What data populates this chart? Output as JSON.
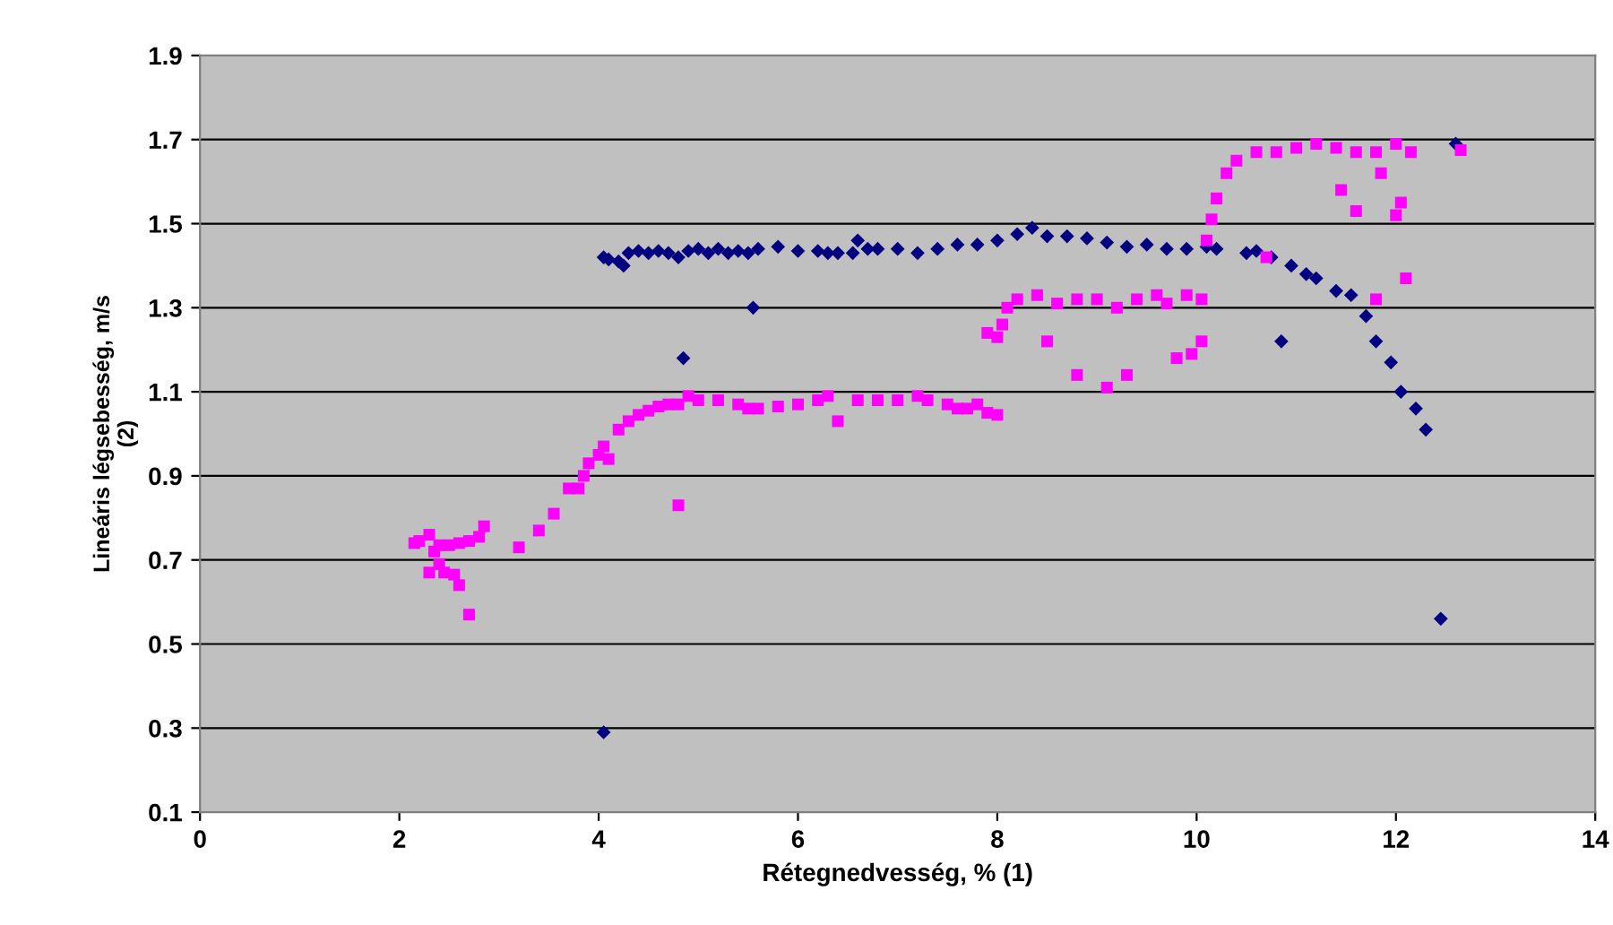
{
  "chart_data": {
    "type": "scatter",
    "xlabel": "Rétegnedvesség, % (1)",
    "ylabel": "Lineáris légsebesség, m/s\n(2)",
    "xlim": [
      0,
      14
    ],
    "xticks": [
      0,
      2,
      4,
      6,
      8,
      10,
      12,
      14
    ],
    "ylim": [
      0.1,
      1.9
    ],
    "yticks": [
      0.1,
      0.3,
      0.5,
      0.7,
      0.9,
      1.1,
      1.3,
      1.5,
      1.7,
      1.9
    ],
    "grid": "y",
    "legend": false,
    "series": [
      {
        "color": "#000080",
        "marker": "diamond",
        "x": [
          4.05,
          4.1,
          4.2,
          4.25,
          4.3,
          4.4,
          4.5,
          4.6,
          4.7,
          4.8,
          4.9,
          5.0,
          5.1,
          5.2,
          5.3,
          5.4,
          5.5,
          5.6,
          5.8,
          6.0,
          6.2,
          6.3,
          6.4,
          6.55,
          6.6,
          6.7,
          6.8,
          7.0,
          7.2,
          7.4,
          7.6,
          7.8,
          8.0,
          8.2,
          8.35,
          8.5,
          8.7,
          8.9,
          9.1,
          9.3,
          9.5,
          9.7,
          9.9,
          10.1,
          10.2,
          10.5,
          10.6,
          10.75,
          10.95,
          11.1,
          11.2,
          11.4,
          11.55,
          11.7,
          11.8,
          11.95,
          12.05,
          12.2,
          12.3,
          12.45,
          12.6,
          4.05,
          4.85,
          5.55,
          10.85
        ],
        "values": [
          1.42,
          1.415,
          1.41,
          1.4,
          1.43,
          1.435,
          1.43,
          1.435,
          1.43,
          1.42,
          1.435,
          1.44,
          1.43,
          1.44,
          1.43,
          1.435,
          1.43,
          1.44,
          1.445,
          1.435,
          1.435,
          1.43,
          1.43,
          1.43,
          1.46,
          1.44,
          1.44,
          1.44,
          1.43,
          1.44,
          1.45,
          1.45,
          1.46,
          1.475,
          1.49,
          1.47,
          1.47,
          1.465,
          1.455,
          1.445,
          1.45,
          1.44,
          1.44,
          1.445,
          1.44,
          1.43,
          1.435,
          1.42,
          1.4,
          1.38,
          1.37,
          1.34,
          1.33,
          1.28,
          1.22,
          1.17,
          1.1,
          1.06,
          1.01,
          0.56,
          1.69,
          0.29,
          1.18,
          1.3,
          1.22
        ]
      },
      {
        "color": "#ff00ff",
        "marker": "square",
        "x": [
          2.15,
          2.2,
          2.3,
          2.35,
          2.4,
          2.5,
          2.6,
          2.7,
          2.8,
          2.85,
          2.3,
          2.4,
          2.45,
          2.55,
          2.6,
          2.7,
          3.2,
          3.4,
          3.55,
          3.7,
          3.8,
          3.85,
          3.9,
          4.0,
          4.05,
          4.1,
          4.2,
          4.3,
          4.4,
          4.5,
          4.6,
          4.7,
          4.8,
          4.8,
          4.9,
          5.0,
          5.2,
          5.4,
          5.5,
          5.6,
          5.8,
          6.0,
          6.2,
          6.3,
          6.4,
          6.6,
          6.8,
          7.0,
          7.2,
          7.3,
          7.5,
          7.6,
          7.7,
          7.8,
          7.9,
          8.0,
          7.9,
          8.0,
          8.05,
          8.1,
          8.2,
          8.4,
          8.5,
          8.6,
          8.8,
          8.8,
          9.0,
          9.1,
          9.2,
          9.3,
          9.4,
          9.6,
          9.7,
          9.8,
          9.9,
          9.95,
          10.05,
          10.05,
          10.1,
          10.15,
          10.2,
          10.3,
          10.4,
          10.6,
          10.7,
          10.8,
          11.0,
          11.2,
          11.4,
          11.45,
          11.6,
          11.6,
          11.8,
          11.8,
          11.85,
          12.0,
          12.0,
          12.05,
          12.1,
          12.15,
          12.65
        ],
        "values": [
          0.74,
          0.745,
          0.76,
          0.72,
          0.735,
          0.735,
          0.74,
          0.745,
          0.755,
          0.78,
          0.67,
          0.69,
          0.67,
          0.665,
          0.64,
          0.57,
          0.73,
          0.77,
          0.81,
          0.87,
          0.87,
          0.9,
          0.93,
          0.95,
          0.97,
          0.94,
          1.01,
          1.03,
          1.045,
          1.055,
          1.065,
          1.07,
          1.07,
          0.83,
          1.09,
          1.08,
          1.08,
          1.07,
          1.06,
          1.06,
          1.065,
          1.07,
          1.08,
          1.09,
          1.03,
          1.08,
          1.08,
          1.08,
          1.09,
          1.08,
          1.07,
          1.06,
          1.06,
          1.07,
          1.05,
          1.045,
          1.24,
          1.23,
          1.26,
          1.3,
          1.32,
          1.33,
          1.22,
          1.31,
          1.32,
          1.14,
          1.32,
          1.11,
          1.3,
          1.14,
          1.32,
          1.33,
          1.31,
          1.18,
          1.33,
          1.19,
          1.32,
          1.22,
          1.46,
          1.51,
          1.56,
          1.62,
          1.65,
          1.67,
          1.42,
          1.67,
          1.68,
          1.69,
          1.68,
          1.58,
          1.67,
          1.53,
          1.67,
          1.32,
          1.62,
          1.69,
          1.52,
          1.55,
          1.37,
          1.67,
          1.675
        ]
      }
    ]
  }
}
